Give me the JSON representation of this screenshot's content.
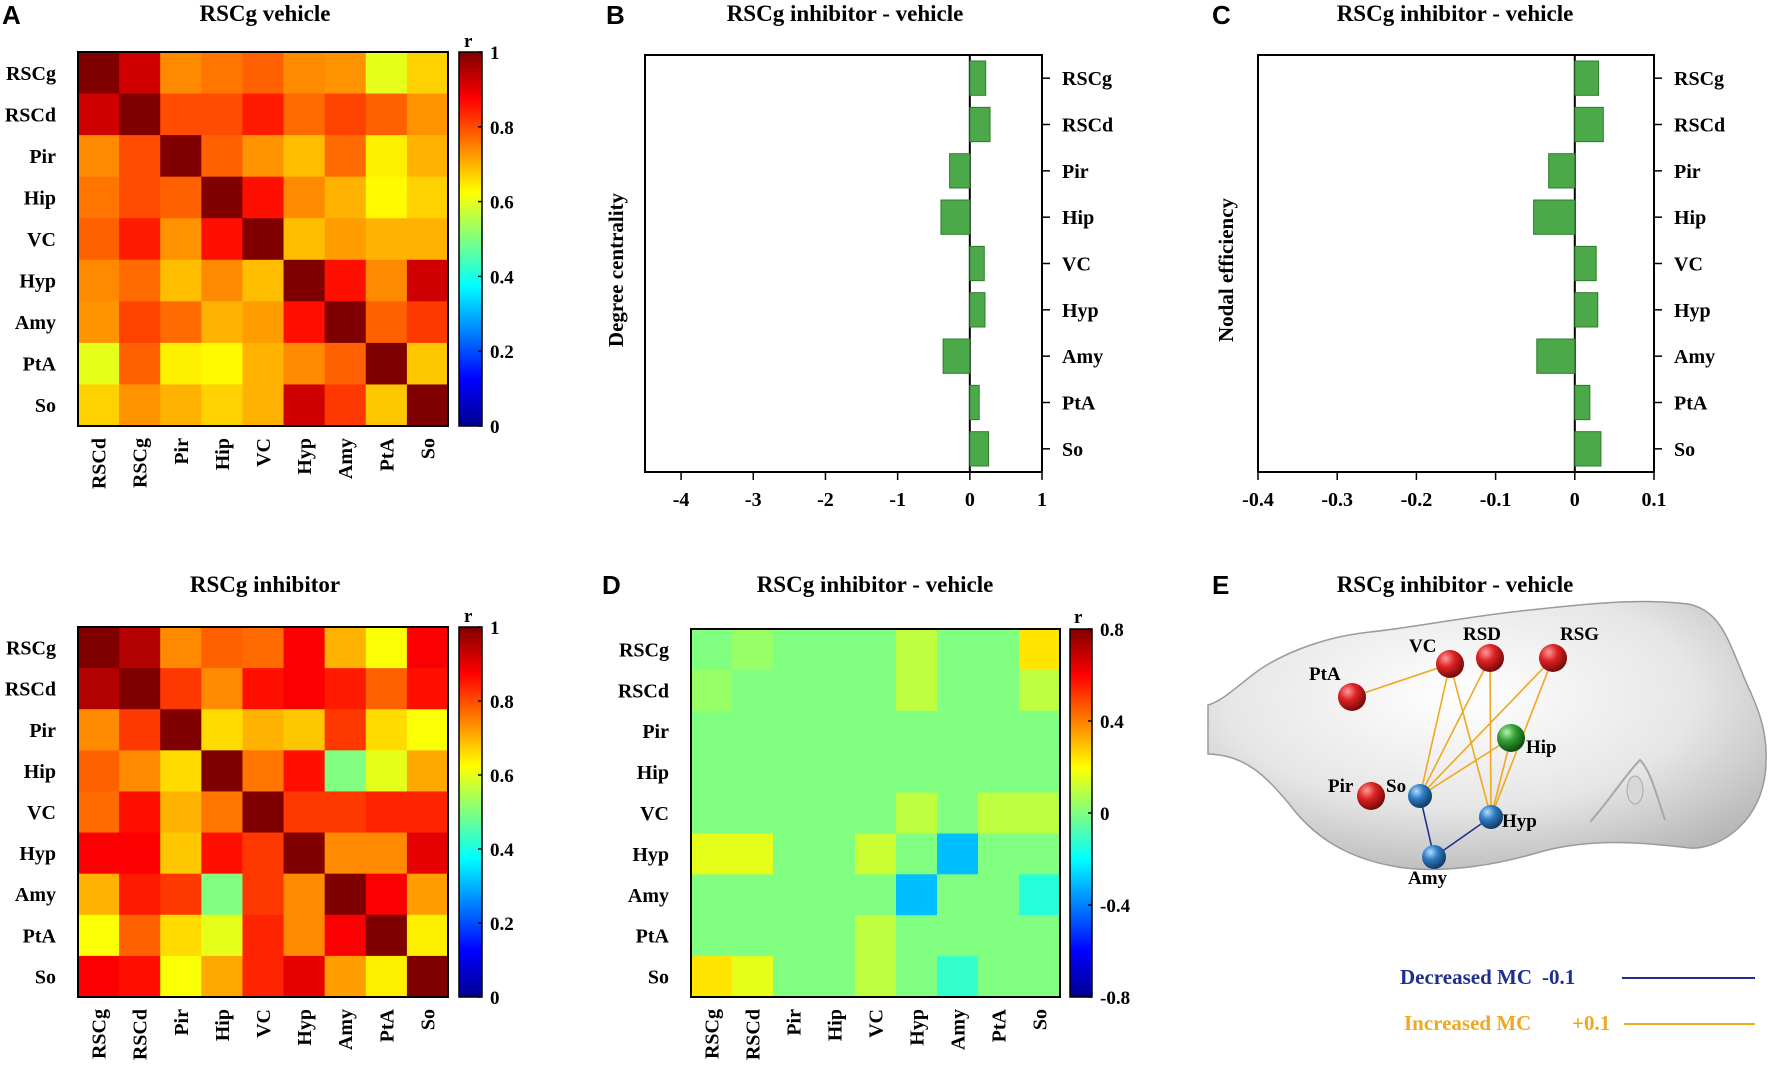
{
  "panel_letters": [
    "A",
    "B",
    "C",
    "D",
    "E"
  ],
  "chart_data": [
    {
      "type": "heatmap",
      "id": "A1",
      "title": "RSCg vehicle",
      "row_labels": [
        "RSCg",
        "RSCd",
        "Pir",
        "Hip",
        "VC",
        "Hyp",
        "Amy",
        "PtA",
        "So"
      ],
      "col_labels": [
        "RSCd",
        "RSCg",
        "Pir",
        "Hip",
        "VC",
        "Hyp",
        "Amy",
        "PtA",
        "So"
      ],
      "colorbar": {
        "label": "r",
        "range": [
          0,
          1
        ],
        "ticks": [
          "1",
          "0.8",
          "0.6",
          "0.4",
          "0.2",
          "0"
        ]
      },
      "values": [
        [
          1.0,
          0.92,
          0.74,
          0.76,
          0.78,
          0.74,
          0.73,
          0.6,
          0.67
        ],
        [
          0.92,
          1.0,
          0.8,
          0.8,
          0.85,
          0.77,
          0.81,
          0.78,
          0.73
        ],
        [
          0.74,
          0.8,
          1.0,
          0.78,
          0.73,
          0.69,
          0.77,
          0.64,
          0.7
        ],
        [
          0.76,
          0.8,
          0.78,
          1.0,
          0.86,
          0.74,
          0.7,
          0.63,
          0.67
        ],
        [
          0.78,
          0.85,
          0.73,
          0.86,
          1.0,
          0.69,
          0.72,
          0.7,
          0.7
        ],
        [
          0.74,
          0.77,
          0.69,
          0.74,
          0.69,
          1.0,
          0.86,
          0.74,
          0.92
        ],
        [
          0.73,
          0.81,
          0.77,
          0.7,
          0.72,
          0.86,
          1.0,
          0.78,
          0.82
        ],
        [
          0.6,
          0.78,
          0.64,
          0.63,
          0.7,
          0.74,
          0.78,
          1.0,
          0.68
        ],
        [
          0.67,
          0.73,
          0.7,
          0.67,
          0.7,
          0.92,
          0.82,
          0.68,
          1.0
        ]
      ]
    },
    {
      "type": "heatmap",
      "id": "A2",
      "title": "RSCg inhibitor",
      "row_labels": [
        "RSCg",
        "RSCd",
        "Pir",
        "Hip",
        "VC",
        "Hyp",
        "Amy",
        "PtA",
        "So"
      ],
      "col_labels": [
        "RSCg",
        "RSCd",
        "Pir",
        "Hip",
        "VC",
        "Hyp",
        "Amy",
        "PtA",
        "So"
      ],
      "colorbar": {
        "label": "r",
        "range": [
          0,
          1
        ],
        "ticks": [
          "1",
          "0.8",
          "0.6",
          "0.4",
          "0.2",
          "0"
        ]
      },
      "values": [
        [
          1.0,
          0.95,
          0.74,
          0.78,
          0.77,
          0.88,
          0.7,
          0.62,
          0.88
        ],
        [
          0.95,
          1.0,
          0.82,
          0.74,
          0.86,
          0.88,
          0.85,
          0.78,
          0.86
        ],
        [
          0.74,
          0.82,
          1.0,
          0.66,
          0.7,
          0.68,
          0.82,
          0.66,
          0.62
        ],
        [
          0.78,
          0.74,
          0.66,
          1.0,
          0.76,
          0.86,
          0.5,
          0.6,
          0.71
        ],
        [
          0.77,
          0.86,
          0.7,
          0.76,
          1.0,
          0.82,
          0.82,
          0.84,
          0.84
        ],
        [
          0.88,
          0.88,
          0.68,
          0.86,
          0.82,
          1.0,
          0.74,
          0.74,
          0.9
        ],
        [
          0.7,
          0.85,
          0.82,
          0.5,
          0.82,
          0.74,
          1.0,
          0.88,
          0.72
        ],
        [
          0.62,
          0.78,
          0.66,
          0.6,
          0.84,
          0.74,
          0.88,
          1.0,
          0.64
        ],
        [
          0.88,
          0.86,
          0.62,
          0.71,
          0.84,
          0.9,
          0.72,
          0.64,
          1.0
        ]
      ]
    },
    {
      "type": "bar",
      "id": "B",
      "orientation": "horizontal",
      "title": "RSCg inhibitor - vehicle",
      "categories": [
        "RSCg",
        "RSCd",
        "Pir",
        "Hip",
        "VC",
        "Hyp",
        "Amy",
        "PtA",
        "So"
      ],
      "values": [
        0.22,
        0.28,
        -0.28,
        -0.4,
        0.2,
        0.21,
        -0.37,
        0.13,
        0.26
      ],
      "xlabel": "",
      "ylabel": "Degree centrality",
      "xlim": [
        -4.5,
        1
      ],
      "xticks": [
        "-4",
        "-3",
        "-2",
        "-1",
        "0",
        "1"
      ],
      "color": "#4ca94a"
    },
    {
      "type": "bar",
      "id": "C",
      "orientation": "horizontal",
      "title": "RSCg inhibitor - vehicle",
      "categories": [
        "RSCg",
        "RSCd",
        "Pir",
        "Hip",
        "VC",
        "Hyp",
        "Amy",
        "PtA",
        "So"
      ],
      "values": [
        0.03,
        0.036,
        -0.033,
        -0.052,
        0.027,
        0.029,
        -0.048,
        0.019,
        0.033
      ],
      "xlabel": "",
      "ylabel": "Nodal efficiency",
      "xlim": [
        -0.4,
        0.1
      ],
      "xticks": [
        "-0.4",
        "-0.3",
        "-0.2",
        "-0.1",
        "0",
        "0.1"
      ],
      "color": "#4ca94a"
    },
    {
      "type": "heatmap",
      "id": "D",
      "title": "RSCg inhibitor - vehicle",
      "row_labels": [
        "RSCg",
        "RSCd",
        "Pir",
        "Hip",
        "VC",
        "Hyp",
        "Amy",
        "PtA",
        "So"
      ],
      "col_labels": [
        "RSCg",
        "RSCd",
        "Pir",
        "Hip",
        "VC",
        "Hyp",
        "Amy",
        "PtA",
        "So"
      ],
      "colorbar": {
        "label": "r",
        "range": [
          -0.8,
          0.8
        ],
        "ticks": [
          "0.8",
          "0.4",
          "0",
          "-0.4",
          "-0.8"
        ]
      },
      "values": [
        [
          0.0,
          0.04,
          0.0,
          0.0,
          0.0,
          0.1,
          0.0,
          0.0,
          0.24
        ],
        [
          0.04,
          0.0,
          0.0,
          0.0,
          0.0,
          0.1,
          0.0,
          0.0,
          0.1
        ],
        [
          0.0,
          0.0,
          0.0,
          0.0,
          0.0,
          0.0,
          0.0,
          0.0,
          0.0
        ],
        [
          0.0,
          0.0,
          0.0,
          0.0,
          0.0,
          0.0,
          0.0,
          0.0,
          0.0
        ],
        [
          0.0,
          0.0,
          0.0,
          0.0,
          0.0,
          0.1,
          0.0,
          0.1,
          0.1
        ],
        [
          0.16,
          0.16,
          0.0,
          0.0,
          0.12,
          0.0,
          -0.3,
          0.0,
          0.0
        ],
        [
          0.0,
          0.0,
          0.0,
          0.0,
          0.0,
          -0.3,
          0.0,
          0.0,
          -0.14
        ],
        [
          0.0,
          0.0,
          0.0,
          0.0,
          0.1,
          0.0,
          0.0,
          0.0,
          0.0
        ],
        [
          0.24,
          0.16,
          0.0,
          0.0,
          0.1,
          0.0,
          -0.12,
          0.0,
          0.0
        ]
      ]
    },
    {
      "type": "network",
      "id": "E",
      "title": "RSCg inhibitor - vehicle",
      "nodes": [
        {
          "label": "PtA",
          "group": "increased",
          "color": "#d62a2a"
        },
        {
          "label": "VC",
          "group": "increased",
          "color": "#d62a2a"
        },
        {
          "label": "RSD",
          "group": "increased",
          "color": "#d62a2a"
        },
        {
          "label": "RSG",
          "group": "increased",
          "color": "#d62a2a"
        },
        {
          "label": "Hip",
          "group": "hub",
          "color": "#3aa33a"
        },
        {
          "label": "Pir",
          "group": "increased",
          "color": "#d62a2a"
        },
        {
          "label": "So",
          "group": "decreased",
          "color": "#2f7fc1"
        },
        {
          "label": "Hyp",
          "group": "decreased",
          "color": "#2f7fc1"
        },
        {
          "label": "Amy",
          "group": "decreased",
          "color": "#2f7fc1"
        }
      ],
      "edges": [
        {
          "from": "PtA",
          "to": "VC",
          "change": 0.1
        },
        {
          "from": "VC",
          "to": "So",
          "change": 0.1
        },
        {
          "from": "VC",
          "to": "Hyp",
          "change": 0.1
        },
        {
          "from": "RSD",
          "to": "So",
          "change": 0.1
        },
        {
          "from": "RSD",
          "to": "Hyp",
          "change": 0.1
        },
        {
          "from": "RSG",
          "to": "So",
          "change": 0.1
        },
        {
          "from": "RSG",
          "to": "Hyp",
          "change": 0.1
        },
        {
          "from": "Hip",
          "to": "So",
          "change": 0.1
        },
        {
          "from": "Hip",
          "to": "Hyp",
          "change": 0.1
        },
        {
          "from": "So",
          "to": "Amy",
          "change": -0.1
        },
        {
          "from": "Hyp",
          "to": "Amy",
          "change": -0.1
        }
      ],
      "legend": [
        {
          "label": "Decreased MC",
          "value": "-0.1",
          "color": "#1f2f8f"
        },
        {
          "label": "Increased MC",
          "value": "+0.1",
          "color": "#f0a81e"
        }
      ]
    }
  ]
}
